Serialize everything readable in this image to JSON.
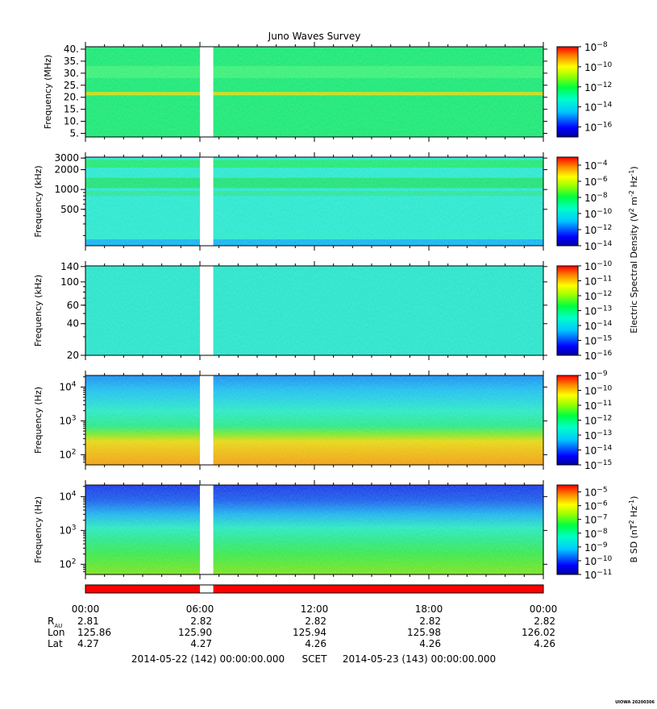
{
  "chart_data": {
    "type": "heatmap",
    "title": "Juno Waves Survey",
    "x_ticks": [
      "00:00",
      "06:00",
      "12:00",
      "18:00",
      "00:00"
    ],
    "data_gap_hours": [
      6.0,
      6.7
    ],
    "panels": [
      {
        "ylabel": "Frequency (MHz)",
        "yscale": "linear",
        "ylim": [
          3.5,
          41
        ],
        "yticks": [
          {
            "v": 5,
            "label": "5."
          },
          {
            "v": 10,
            "label": "10."
          },
          {
            "v": 15,
            "label": "15."
          },
          {
            "v": 20,
            "label": "20."
          },
          {
            "v": 25,
            "label": "25."
          },
          {
            "v": 30,
            "label": "30."
          },
          {
            "v": 35,
            "label": "35."
          },
          {
            "v": 40,
            "label": "40."
          }
        ],
        "colorbar": {
          "exp_min": -17,
          "exp_max": -8,
          "tick_exponents": [
            -8,
            -10,
            -12,
            -14,
            -16
          ]
        },
        "bands": [
          {
            "y0": 20.8,
            "y1": 22.2,
            "color": "#c9dc1c"
          },
          {
            "y0": 28,
            "y1": 33,
            "color": "#3df07a"
          }
        ],
        "base_color": "#20e878"
      },
      {
        "ylabel": "Frequency (kHz)",
        "yscale": "log",
        "ylim": [
          140,
          3100
        ],
        "yticks": [
          {
            "v": 500,
            "label": "500"
          },
          {
            "v": 1000,
            "label": "1000"
          },
          {
            "v": 2000,
            "label": "2000"
          },
          {
            "v": 3000,
            "label": "3000"
          }
        ],
        "colorbar": {
          "exp_min": -14,
          "exp_max": -3,
          "tick_exponents": [
            -4,
            -6,
            -8,
            -10,
            -12,
            -14
          ]
        },
        "bands": [
          {
            "y0": 2150,
            "y1": 2800,
            "color": "#27e879"
          },
          {
            "y0": 1050,
            "y1": 1500,
            "color": "#25e27a"
          },
          {
            "y0": 800,
            "y1": 950,
            "color": "#2fe69a"
          },
          {
            "y0": 140,
            "y1": 175,
            "color": "#1ab6f0"
          }
        ],
        "base_color": "#2fe8d0"
      },
      {
        "ylabel": "Frequency (kHz)",
        "yscale": "log",
        "ylim": [
          20,
          142
        ],
        "yticks": [
          {
            "v": 20,
            "label": "20"
          },
          {
            "v": 40,
            "label": "40"
          },
          {
            "v": 60,
            "label": "60"
          },
          {
            "v": 100,
            "label": "100"
          },
          {
            "v": 140,
            "label": "140"
          }
        ],
        "colorbar": {
          "exp_min": -16,
          "exp_max": -10,
          "tick_exponents": [
            -10,
            -11,
            -12,
            -13,
            -14,
            -15,
            -16
          ]
        },
        "bands": [],
        "base_color": "#2de4cc"
      },
      {
        "ylabel": "Frequency (Hz)",
        "yscale": "log",
        "ylim": [
          50,
          22000
        ],
        "yticks": [
          {
            "v": 100,
            "label": "10^2"
          },
          {
            "v": 1000,
            "label": "10^3"
          },
          {
            "v": 10000,
            "label": "10^4"
          }
        ],
        "colorbar": {
          "exp_min": -15,
          "exp_max": -9,
          "tick_exponents": [
            -9,
            -10,
            -11,
            -12,
            -13,
            -14,
            -15
          ]
        },
        "bands": [],
        "gradient": [
          {
            "f": 22000,
            "color": "#1e90f0"
          },
          {
            "f": 8000,
            "color": "#24c0f0"
          },
          {
            "f": 2000,
            "color": "#2ee8c8"
          },
          {
            "f": 700,
            "color": "#2ee88a"
          },
          {
            "f": 400,
            "color": "#7ee830"
          },
          {
            "f": 250,
            "color": "#e6d818"
          },
          {
            "f": 50,
            "color": "#f2a016"
          }
        ]
      },
      {
        "ylabel": "Frequency (Hz)",
        "yscale": "log",
        "ylim": [
          50,
          22000
        ],
        "yticks": [
          {
            "v": 100,
            "label": "10^2"
          },
          {
            "v": 1000,
            "label": "10^3"
          },
          {
            "v": 10000,
            "label": "10^4"
          }
        ],
        "colorbar": {
          "exp_min": -11,
          "exp_max": -4.5,
          "tick_exponents": [
            -5,
            -6,
            -7,
            -8,
            -9,
            -10,
            -11
          ]
        },
        "bands": [],
        "gradient": [
          {
            "f": 22000,
            "color": "#1e3ce6"
          },
          {
            "f": 8000,
            "color": "#1e60ec"
          },
          {
            "f": 3000,
            "color": "#22b4ee"
          },
          {
            "f": 1200,
            "color": "#2ee8c0"
          },
          {
            "f": 500,
            "color": "#2ee88a"
          },
          {
            "f": 200,
            "color": "#3ee850"
          },
          {
            "f": 50,
            "color": "#7ee420"
          }
        ]
      }
    ],
    "colorbar_labels": {
      "efield": "Electric Spectral Density (V^2 m^-2 Hz^-1)",
      "bfield": "B SD (nT^2 Hz^-1)"
    },
    "ephemeris": {
      "rows": [
        {
          "label": "R",
          "sub": "AU",
          "values": [
            "2.81",
            "2.82",
            "2.82",
            "2.82",
            "2.82"
          ]
        },
        {
          "label": "Lon",
          "sub": "",
          "values": [
            "125.86",
            "125.90",
            "125.94",
            "125.98",
            "126.02"
          ]
        },
        {
          "label": "Lat",
          "sub": "",
          "values": [
            "4.27",
            "4.27",
            "4.26",
            "4.26",
            "4.26"
          ]
        }
      ]
    },
    "time_span": {
      "start": "2014-05-22 (142) 00:00:00.000",
      "mid": "SCET",
      "end": "2014-05-23 (143) 00:00:00.000"
    },
    "stamp": "UIOWA 20200306",
    "status_bar_color": "#ff0000"
  }
}
